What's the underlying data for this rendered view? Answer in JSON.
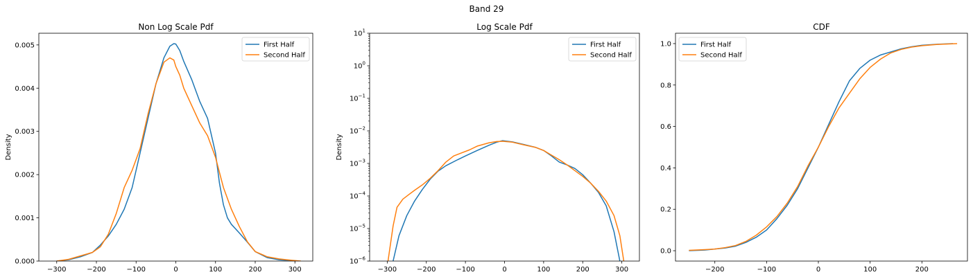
{
  "figure": {
    "suptitle": "Band 29"
  },
  "colors": {
    "first": "#1f77b4",
    "second": "#ff7f0e"
  },
  "chart_data": [
    {
      "type": "line",
      "title": "Non Log Scale Pdf",
      "xlabel": "",
      "ylabel": "Density",
      "xlim": [
        -345,
        345
      ],
      "ylim": [
        0,
        0.00527
      ],
      "yscale": "linear",
      "xticks": [
        -300,
        -200,
        -100,
        0,
        100,
        200,
        300
      ],
      "xtick_labels": [
        "−300",
        "−200",
        "−100",
        "0",
        "100",
        "200",
        "300"
      ],
      "yticks": [
        0,
        0.001,
        0.002,
        0.003,
        0.004,
        0.005
      ],
      "ytick_labels": [
        "0.000",
        "0.001",
        "0.002",
        "0.003",
        "0.004",
        "0.005"
      ],
      "legend": "top-right",
      "series": [
        {
          "name": "First Half",
          "x": [
            -300,
            -270,
            -240,
            -210,
            -190,
            -170,
            -150,
            -130,
            -110,
            -90,
            -70,
            -50,
            -30,
            -15,
            -5,
            0,
            10,
            20,
            40,
            60,
            80,
            100,
            110,
            120,
            130,
            140,
            160,
            180,
            200,
            230,
            260,
            290,
            310
          ],
          "y": [
            0.0,
            3e-05,
            0.0001,
            0.0002,
            0.00037,
            0.00058,
            0.00085,
            0.0012,
            0.0017,
            0.0025,
            0.0033,
            0.0041,
            0.0047,
            0.00497,
            0.00503,
            0.00502,
            0.00487,
            0.00462,
            0.0042,
            0.0037,
            0.0033,
            0.0025,
            0.0018,
            0.0013,
            0.001,
            0.00085,
            0.00065,
            0.00044,
            0.00022,
            8e-05,
            3e-05,
            1e-05,
            0.0
          ]
        },
        {
          "name": "Second Half",
          "x": [
            -300,
            -270,
            -240,
            -210,
            -190,
            -170,
            -150,
            -130,
            -110,
            -90,
            -70,
            -50,
            -30,
            -15,
            -5,
            0,
            10,
            20,
            40,
            60,
            80,
            100,
            120,
            140,
            160,
            180,
            200,
            230,
            260,
            290,
            315
          ],
          "y": [
            0.0,
            4e-05,
            0.00012,
            0.0002,
            0.00033,
            0.00062,
            0.0011,
            0.0017,
            0.0021,
            0.0026,
            0.0034,
            0.0041,
            0.0046,
            0.0047,
            0.00465,
            0.0045,
            0.0043,
            0.004,
            0.0036,
            0.0032,
            0.0029,
            0.0024,
            0.0017,
            0.0012,
            0.0008,
            0.00045,
            0.00022,
            0.0001,
            5e-05,
            2e-05,
            0.0
          ]
        }
      ]
    },
    {
      "type": "line",
      "title": "Log Scale Pdf",
      "xlabel": "",
      "ylabel": "Density",
      "xlim": [
        -345,
        345
      ],
      "ylim": [
        1e-06,
        10
      ],
      "yscale": "log",
      "xticks": [
        -300,
        -200,
        -100,
        0,
        100,
        200,
        300
      ],
      "xtick_labels": [
        "−300",
        "−200",
        "−100",
        "0",
        "100",
        "200",
        "300"
      ],
      "yticks": [
        1e-06,
        1e-05,
        0.0001,
        0.001,
        0.01,
        0.1,
        1,
        10
      ],
      "ytick_labels": [
        {
          "base": "10",
          "exp": "−6"
        },
        {
          "base": "10",
          "exp": "−5"
        },
        {
          "base": "10",
          "exp": "−4"
        },
        {
          "base": "10",
          "exp": "−3"
        },
        {
          "base": "10",
          "exp": "−2"
        },
        {
          "base": "10",
          "exp": "−1"
        },
        {
          "base": "10",
          "exp": "0"
        },
        {
          "base": "10",
          "exp": "1"
        }
      ],
      "legend": "top-right",
      "series": [
        {
          "name": "First Half",
          "x": [
            -285,
            -270,
            -250,
            -230,
            -210,
            -190,
            -170,
            -150,
            -120,
            -100,
            -70,
            -40,
            -20,
            -5,
            20,
            50,
            80,
            100,
            120,
            140,
            160,
            180,
            200,
            220,
            240,
            260,
            280,
            295
          ],
          "y": [
            1e-06,
            6e-06,
            2.5e-05,
            7e-05,
            0.00016,
            0.00033,
            0.00058,
            0.00085,
            0.0013,
            0.0017,
            0.0025,
            0.0036,
            0.0045,
            0.005,
            0.0046,
            0.0038,
            0.0031,
            0.0025,
            0.0017,
            0.0011,
            0.0009,
            0.0007,
            0.00045,
            0.00025,
            0.00013,
            5e-05,
            8e-06,
            1e-06
          ]
        },
        {
          "name": "Second Half",
          "x": [
            -298,
            -285,
            -275,
            -260,
            -245,
            -230,
            -210,
            -190,
            -170,
            -150,
            -130,
            -110,
            -90,
            -70,
            -40,
            -20,
            -5,
            20,
            50,
            80,
            100,
            120,
            140,
            160,
            180,
            200,
            220,
            240,
            260,
            280,
            295,
            305
          ],
          "y": [
            1e-06,
            1.2e-05,
            4.5e-05,
            8e-05,
            0.00011,
            0.00015,
            0.00022,
            0.00035,
            0.0006,
            0.0011,
            0.0017,
            0.0021,
            0.0026,
            0.0034,
            0.0043,
            0.0047,
            0.0048,
            0.0045,
            0.0037,
            0.0031,
            0.0025,
            0.0018,
            0.0013,
            0.0009,
            0.0006,
            0.0004,
            0.00025,
            0.00014,
            7e-05,
            2.5e-05,
            6e-06,
            1e-06
          ]
        }
      ]
    },
    {
      "type": "line",
      "title": "CDF",
      "xlabel": "",
      "ylabel": "",
      "xlim": [
        -276,
        288
      ],
      "ylim": [
        -0.05,
        1.05
      ],
      "yscale": "linear",
      "xticks": [
        -200,
        -100,
        0,
        100,
        200
      ],
      "xtick_labels": [
        "−200",
        "−100",
        "0",
        "100",
        "200"
      ],
      "yticks": [
        0,
        0.2,
        0.4,
        0.6,
        0.8,
        1.0
      ],
      "ytick_labels": [
        "0.0",
        "0.2",
        "0.4",
        "0.6",
        "0.8",
        "1.0"
      ],
      "legend": "top-left",
      "series": [
        {
          "name": "First Half",
          "x": [
            -250,
            -220,
            -200,
            -180,
            -160,
            -140,
            -120,
            -100,
            -80,
            -60,
            -40,
            -20,
            0,
            20,
            40,
            60,
            80,
            100,
            120,
            140,
            160,
            180,
            200,
            230,
            260
          ],
          "y": [
            0.0,
            0.003,
            0.008,
            0.013,
            0.022,
            0.04,
            0.065,
            0.1,
            0.155,
            0.22,
            0.3,
            0.4,
            0.5,
            0.61,
            0.72,
            0.82,
            0.88,
            0.92,
            0.945,
            0.96,
            0.975,
            0.985,
            0.992,
            0.997,
            1.0
          ]
        },
        {
          "name": "Second Half",
          "x": [
            -250,
            -220,
            -200,
            -180,
            -160,
            -140,
            -120,
            -100,
            -80,
            -60,
            -40,
            -20,
            0,
            20,
            40,
            60,
            80,
            100,
            120,
            140,
            160,
            180,
            200,
            230,
            268
          ],
          "y": [
            0.002,
            0.005,
            0.008,
            0.015,
            0.025,
            0.045,
            0.075,
            0.115,
            0.165,
            0.23,
            0.31,
            0.41,
            0.5,
            0.6,
            0.69,
            0.76,
            0.83,
            0.885,
            0.925,
            0.955,
            0.972,
            0.983,
            0.99,
            0.996,
            1.0
          ]
        }
      ]
    }
  ]
}
